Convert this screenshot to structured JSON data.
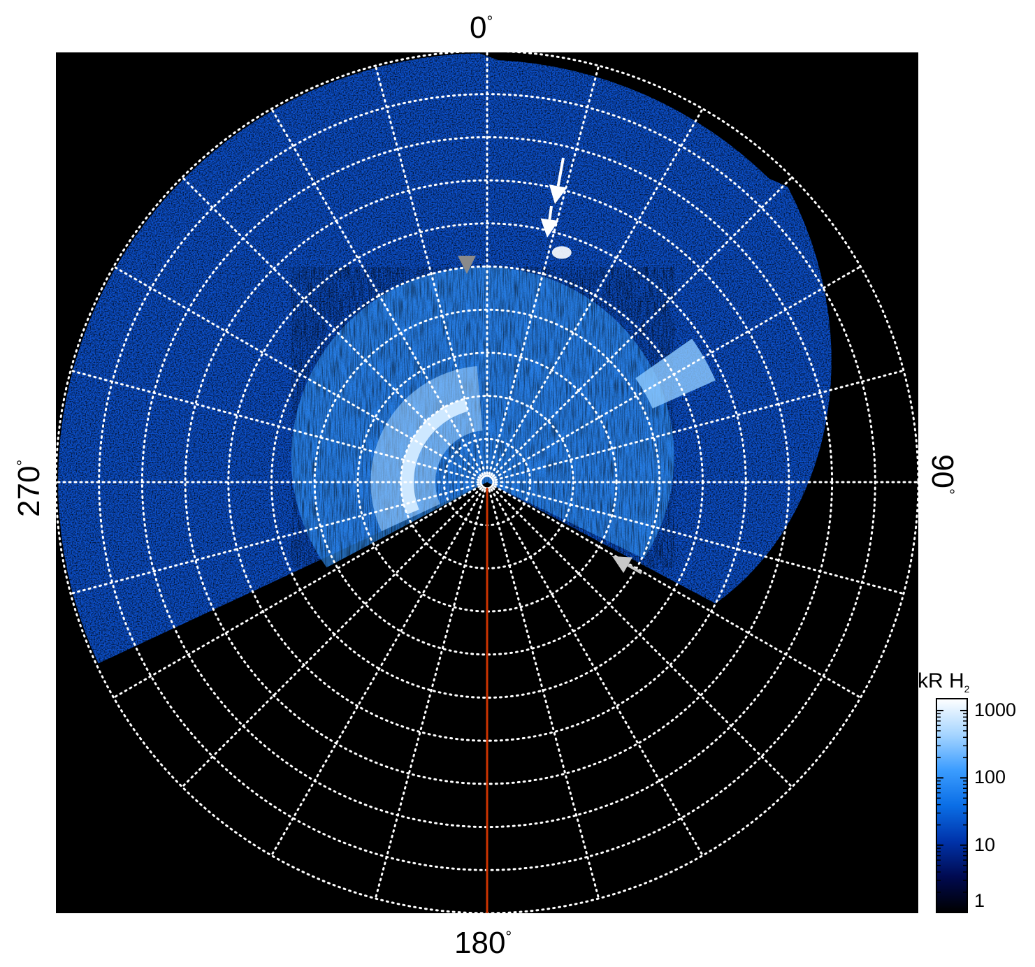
{
  "chart_data": {
    "type": "heatmap",
    "projection": "polar",
    "angular_labels": [
      {
        "angle_deg": 0,
        "text": "0",
        "unit": "°"
      },
      {
        "angle_deg": 90,
        "text": "90",
        "unit": "°"
      },
      {
        "angle_deg": 180,
        "text": "180",
        "unit": "°"
      },
      {
        "angle_deg": 270,
        "text": "270",
        "unit": "°"
      }
    ],
    "radial_rings": 10,
    "spoke_step_deg": 15,
    "grid": "dotted white",
    "highlighted_meridian_deg": 180,
    "highlight_color": "#cc3300",
    "background_color": "#000000",
    "colorbar": {
      "title": "kR H",
      "title_subscript": "2",
      "scale": "log",
      "ticks": [
        "1",
        "10",
        "100",
        "1000"
      ],
      "range": [
        1,
        1500
      ],
      "colormap": [
        "#000000",
        "#000a50",
        "#0033aa",
        "#0a6ee6",
        "#3c9dff",
        "#a6d5ff",
        "#ffffff"
      ]
    },
    "annotations": [
      {
        "kind": "arrow",
        "color": "#ffffff"
      },
      {
        "kind": "arrowhead",
        "color": "#ffffff"
      },
      {
        "kind": "arrowhead",
        "color": "#8a8a8a"
      },
      {
        "kind": "arrow",
        "color": "#c8c8c8"
      }
    ]
  }
}
